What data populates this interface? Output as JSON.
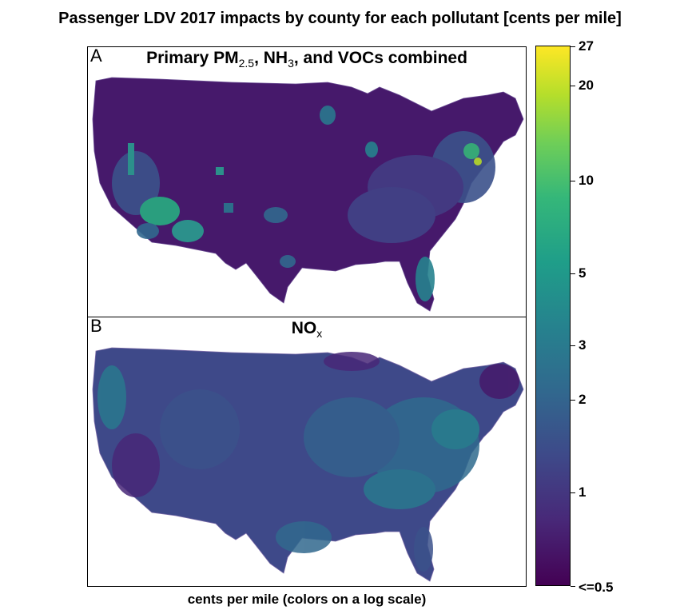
{
  "title": "Passenger LDV 2017 impacts by county for each pollutant [cents per mile]",
  "panels": [
    {
      "letter": "A",
      "title_main": "Primary PM",
      "title_sub": "2.5",
      "title_rest": ", NH",
      "title_sub2": "3",
      "title_end": ", and VOCs combined"
    },
    {
      "letter": "B",
      "title_main": "NO",
      "title_sub": "x"
    }
  ],
  "colorbar": {
    "scale": "log",
    "colors": [
      "#440154",
      "#482878",
      "#3e4989",
      "#31688e",
      "#26828e",
      "#1f9e89",
      "#35b779",
      "#6ece58",
      "#b5de2b",
      "#fde725"
    ],
    "ticks": [
      "27",
      "20",
      "10",
      "5",
      "3",
      "2",
      "1",
      "<=0.5"
    ]
  },
  "caption": "cents per mile (colors on a log scale)"
}
